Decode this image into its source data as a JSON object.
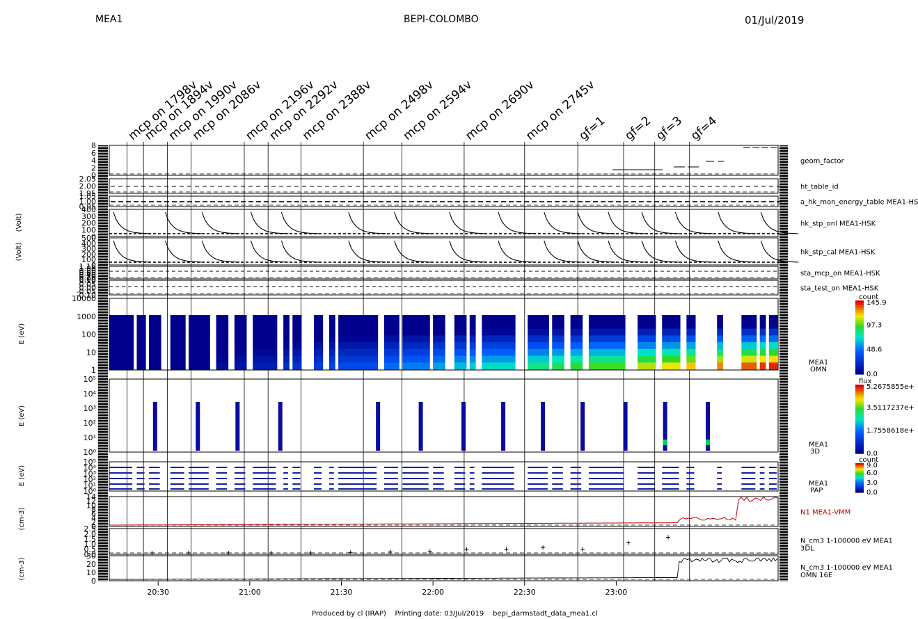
{
  "header": {
    "instrument": "MEA1",
    "mission": "BEPI-COLOMBO",
    "date": "01/Jul/2019"
  },
  "footer": {
    "produced_by": "Produced by cl (IRAP)",
    "printing_date": "Printing date: 03/Jul/2019",
    "file": "bepi_darmstadt_data_mea1.cl"
  },
  "annotations": [
    {
      "text": "mcp on 1798v",
      "time": 20.33
    },
    {
      "text": "mcp on 1894v",
      "time": 20.42
    },
    {
      "text": "mcp on 1990v",
      "time": 20.55
    },
    {
      "text": "mcp on 2086v",
      "time": 20.68
    },
    {
      "text": "mcp on 2196v",
      "time": 20.97
    },
    {
      "text": "mcp on 2292v",
      "time": 21.1
    },
    {
      "text": "mcp on 2388v",
      "time": 21.28
    },
    {
      "text": "mcp on 2498v",
      "time": 21.62
    },
    {
      "text": "mcp on 2594v",
      "time": 21.83
    },
    {
      "text": "mcp on 2690v",
      "time": 22.17
    },
    {
      "text": "mcp on 2745v",
      "time": 22.5
    },
    {
      "text": "gf=1",
      "time": 22.79
    },
    {
      "text": "gf=2",
      "time": 23.04
    },
    {
      "text": "gf=3",
      "time": 23.21
    },
    {
      "text": "gf=4",
      "time": 23.4
    }
  ],
  "chart_data": {
    "type": "heatmap",
    "x_range": [
      "20:14",
      "23:53"
    ],
    "x_ticks": [
      "20:30",
      "21:00",
      "21:30",
      "22:00",
      "22:30",
      "23:00"
    ],
    "y_axis_group_labels": [
      "(Volt)",
      "(Volt)",
      "E (eV)",
      "E (eV)",
      "E (eV)",
      "(cm-3)",
      "(cm-3)"
    ],
    "panels": [
      {
        "label": "geom_factor",
        "y_ticks": [
          "8",
          "6",
          "4",
          "2",
          "0"
        ]
      },
      {
        "label": "ht_table_id",
        "y_ticks": [
          "2.05",
          "2.00",
          "1.95"
        ]
      },
      {
        "label": "a_hk_mon_energy_table MEA1-HS",
        "y_ticks": [
          "1.05",
          "1.00",
          "0.95"
        ]
      },
      {
        "label": "hk_stp_onl MEA1-HSK",
        "ylabel": "(Volt)",
        "y_ticks": [
          "400",
          "300",
          "200",
          "100",
          "0"
        ]
      },
      {
        "label": "hk_stp_cal MEA1-HSK",
        "ylabel": "(Volt)",
        "y_ticks": [
          "500",
          "400",
          "300",
          "200",
          "100",
          "0"
        ]
      },
      {
        "label": "sta_mcp_on MEA1-HSK",
        "y_ticks": [
          "1.15",
          "1.00",
          "0.80",
          "0.60",
          "0.40",
          "0.20",
          "0.00"
        ]
      },
      {
        "label": "sta_test_on MEA1-HSK",
        "y_ticks": [
          "0.10",
          "0.05",
          "0.00",
          "-0.05",
          "-0.10"
        ]
      },
      {
        "label": "MEA1 OMN",
        "ylabel": "E (eV)",
        "y_ticks": [
          "10000",
          "1000",
          "100",
          "10",
          "1"
        ],
        "colorbar": {
          "title": "count",
          "max": "145.9",
          "ticks": [
            "97.3",
            "48.6",
            "0.0"
          ]
        }
      },
      {
        "label": "MEA1 3D",
        "ylabel": "E (eV)",
        "y_ticks": [
          "10⁵",
          "10⁴",
          "10³",
          "10²",
          "10¹",
          "10⁰"
        ],
        "colorbar": {
          "title": "flux",
          "max": "5.2675855e+",
          "ticks": [
            "3.5117237e+",
            "1.7558618e+",
            "0.0"
          ]
        }
      },
      {
        "label": "MEA1 PAP",
        "ylabel": "E (eV)",
        "y_ticks": [
          "10⁵",
          "10⁴",
          "10³",
          "10²",
          "10¹",
          "10⁰"
        ],
        "colorbar": {
          "title": "count",
          "max": "9.0",
          "ticks": [
            "6.0",
            "3.0",
            "0.0"
          ]
        }
      },
      {
        "label": "N1 MEA1-VMM",
        "y_ticks": [
          "14",
          "12",
          "10",
          "8",
          "6",
          "4",
          "2",
          "0"
        ]
      },
      {
        "label": "N_cm3 1-100000 eV MEA1 3DL",
        "ylabel": "(cm-3)",
        "y_ticks": [
          "2.5",
          "2.0",
          "1.5",
          "1.0",
          "0.5",
          "0.0"
        ]
      },
      {
        "label": "N_cm3 1-100000 eV MEA1 OMN 16E",
        "ylabel": "(cm-3)",
        "y_ticks": [
          "30",
          "20",
          "10",
          "0"
        ]
      }
    ],
    "omn_active_intervals": [
      [
        "20:14",
        "20:22"
      ],
      [
        "20:23",
        "20:26"
      ],
      [
        "20:27",
        "20:31"
      ],
      [
        "20:34",
        "20:39"
      ],
      [
        "20:40",
        "20:47"
      ],
      [
        "20:49",
        "20:53"
      ],
      [
        "20:55",
        "20:59"
      ],
      [
        "21:01",
        "21:09"
      ],
      [
        "21:11",
        "21:13"
      ],
      [
        "21:14",
        "21:17"
      ],
      [
        "21:21",
        "21:24"
      ],
      [
        "21:26",
        "21:28"
      ],
      [
        "21:29",
        "21:42"
      ],
      [
        "21:44",
        "21:49"
      ],
      [
        "21:50",
        "21:59"
      ],
      [
        "22:00",
        "22:04"
      ],
      [
        "22:07",
        "22:11"
      ],
      [
        "22:12",
        "22:14"
      ],
      [
        "22:16",
        "22:27"
      ],
      [
        "22:31",
        "22:38"
      ],
      [
        "22:39",
        "22:43"
      ],
      [
        "22:45",
        "22:49"
      ],
      [
        "22:51",
        "23:03"
      ],
      [
        "23:07",
        "23:13"
      ],
      [
        "23:15",
        "23:21"
      ],
      [
        "23:23",
        "23:26"
      ],
      [
        "23:33",
        "23:35"
      ],
      [
        "23:41",
        "23:46"
      ],
      [
        "23:47",
        "23:49"
      ],
      [
        "23:50",
        "23:53"
      ]
    ],
    "three_d_sweeps": [
      "20:29",
      "20:43",
      "20:56",
      "21:10",
      "21:42",
      "21:56",
      "22:10",
      "22:23",
      "22:36",
      "22:49",
      "23:03",
      "23:16",
      "23:30"
    ],
    "stp_sweep_starts": [
      "20:14",
      "20:31",
      "20:43",
      "20:59",
      "21:09",
      "21:31",
      "21:46",
      "22:04",
      "22:20",
      "22:35",
      "22:46",
      "22:56",
      "23:07",
      "23:18",
      "23:32",
      "23:46"
    ],
    "density_3dl_points": [
      {
        "t": "20:28",
        "n": 0.0
      },
      {
        "t": "20:40",
        "n": 0.0
      },
      {
        "t": "20:53",
        "n": 0.0
      },
      {
        "t": "21:07",
        "n": 0.0
      },
      {
        "t": "21:20",
        "n": 0.0
      },
      {
        "t": "21:33",
        "n": 0.05
      },
      {
        "t": "21:46",
        "n": 0.1
      },
      {
        "t": "21:59",
        "n": 0.15
      },
      {
        "t": "22:11",
        "n": 0.4
      },
      {
        "t": "22:24",
        "n": 0.4
      },
      {
        "t": "22:36",
        "n": 0.6
      },
      {
        "t": "22:49",
        "n": 0.4
      },
      {
        "t": "23:04",
        "n": 1.1
      },
      {
        "t": "23:17",
        "n": 1.7
      }
    ]
  }
}
